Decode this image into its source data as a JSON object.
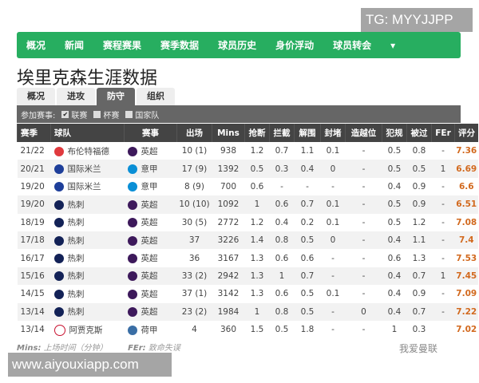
{
  "watermark_top": "TG: MYYJJPP",
  "watermark_bottom": "www.aiyouxiapp.com",
  "watermark_weibo": "我爱曼联",
  "nav": [
    "概况",
    "新闻",
    "赛程赛果",
    "赛季数据",
    "球员历史",
    "身价浮动",
    "球员转会"
  ],
  "nav_more": "▾",
  "title": "埃里克森生涯数据",
  "tabs": [
    "概况",
    "进攻",
    "防守",
    "组织"
  ],
  "active_tab": "防守",
  "filter": {
    "label": "参加赛事:",
    "options": [
      {
        "label": "联赛",
        "checked": true
      },
      {
        "label": "杯赛",
        "checked": false
      },
      {
        "label": "国家队",
        "checked": false
      }
    ]
  },
  "columns": [
    "赛季",
    "球队",
    "赛事",
    "出场",
    "Mins",
    "抢断",
    "拦截",
    "解围",
    "封堵",
    "造越位",
    "犯规",
    "被过",
    "FEr",
    "评分"
  ],
  "colors": {
    "nav": "#27ae60",
    "rating": "#d2691e",
    "brentford": "#e03a3e",
    "inter": "#1e3f9a",
    "spurs": "#132257",
    "ajax": "#c8102e",
    "premier": "#3d195b",
    "seriea": "#0a8fd6"
  },
  "rows": [
    [
      "21/22",
      "布伦特福德",
      "英超",
      "10 (1)",
      "938",
      "1.2",
      "0.7",
      "1.1",
      "0.1",
      "-",
      "0.5",
      "0.8",
      "-",
      "7.36"
    ],
    [
      "20/21",
      "国际米兰",
      "意甲",
      "17 (9)",
      "1392",
      "0.5",
      "0.3",
      "0.4",
      "0",
      "-",
      "0.5",
      "0.5",
      "1",
      "6.69"
    ],
    [
      "19/20",
      "国际米兰",
      "意甲",
      "8 (9)",
      "700",
      "0.6",
      "-",
      "-",
      "-",
      "-",
      "0.4",
      "0.9",
      "-",
      "6.6"
    ],
    [
      "19/20",
      "热刺",
      "英超",
      "10 (10)",
      "1092",
      "1",
      "0.6",
      "0.7",
      "0.1",
      "-",
      "0.5",
      "0.9",
      "-",
      "6.51"
    ],
    [
      "18/19",
      "热刺",
      "英超",
      "30 (5)",
      "2772",
      "1.2",
      "0.4",
      "0.2",
      "0.1",
      "-",
      "0.5",
      "1.2",
      "-",
      "7.08"
    ],
    [
      "17/18",
      "热刺",
      "英超",
      "37",
      "3226",
      "1.4",
      "0.8",
      "0.5",
      "0",
      "-",
      "0.4",
      "1.1",
      "-",
      "7.4"
    ],
    [
      "16/17",
      "热刺",
      "英超",
      "36",
      "3167",
      "1.3",
      "0.6",
      "0.6",
      "-",
      "-",
      "0.6",
      "1.3",
      "-",
      "7.53"
    ],
    [
      "15/16",
      "热刺",
      "英超",
      "33 (2)",
      "2942",
      "1.3",
      "1",
      "0.7",
      "-",
      "-",
      "0.4",
      "0.7",
      "1",
      "7.45"
    ],
    [
      "14/15",
      "热刺",
      "英超",
      "37 (1)",
      "3142",
      "1.3",
      "0.6",
      "0.5",
      "0.1",
      "-",
      "0.4",
      "0.9",
      "-",
      "7.09"
    ],
    [
      "13/14",
      "热刺",
      "英超",
      "23 (2)",
      "1984",
      "1",
      "0.8",
      "0.5",
      "-",
      "0",
      "0.4",
      "0.7",
      "-",
      "7.22"
    ],
    [
      "13/14",
      "阿贾克斯",
      "荷甲",
      "4",
      "360",
      "1.5",
      "0.5",
      "1.8",
      "-",
      "-",
      "1",
      "0.3",
      "",
      "7.02"
    ]
  ],
  "footnote": {
    "mins_key": "Mins:",
    "mins_desc": "上场时间（分钟）",
    "fer_key": "FEr:",
    "fer_desc": "致命失误"
  }
}
